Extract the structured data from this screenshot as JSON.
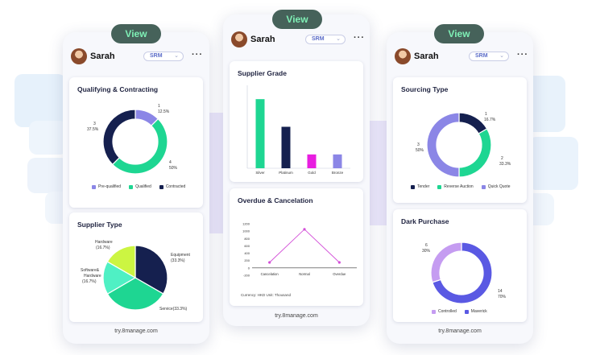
{
  "header": {
    "user_name": "Sarah",
    "module": "SRM",
    "view_label": "View"
  },
  "footer": "try.8manage.com",
  "colors": {
    "navy": "#15204f",
    "green": "#1ed692",
    "purple": "#8b86e6",
    "lavender": "#c59cf1",
    "lime": "#ccf542",
    "teal": "#4ff0c4",
    "magenta": "#e81ee0",
    "blue": "#5a59e3"
  },
  "cards": {
    "qualifying": {
      "title": "Qualifying & Contracting",
      "slices": [
        {
          "name": "Pre-qualified",
          "value": 1,
          "label": "1",
          "pct": "12.5%",
          "color": "#8b86e6"
        },
        {
          "name": "Qualified",
          "value": 4,
          "label": "4",
          "pct": "50%",
          "color": "#1ed692"
        },
        {
          "name": "Contracted",
          "value": 3,
          "label": "3",
          "pct": "37.5%",
          "color": "#15204f"
        }
      ]
    },
    "supplier_type": {
      "title": "Supplier Type",
      "slices": [
        {
          "name": "Equipment",
          "label": "Equipment",
          "pct": "(33.3%)",
          "value": 33.3,
          "color": "#15204f"
        },
        {
          "name": "Service",
          "label": "Service(33.3%)",
          "pct": "",
          "value": 33.3,
          "color": "#1ed692"
        },
        {
          "name": "Software& Hardware",
          "label": "Software&",
          "label2": "Hardware",
          "pct": "(16.7%)",
          "value": 16.7,
          "color": "#4ff0c4"
        },
        {
          "name": "Hardware",
          "label": "Hardware",
          "pct": "(16.7%)",
          "value": 16.7,
          "color": "#ccf542"
        }
      ]
    },
    "supplier_grade": {
      "title": "Supplier Grade",
      "categories": [
        "Silver",
        "Platinum",
        "Gold",
        "Bronze"
      ],
      "values": [
        5,
        3,
        1,
        1
      ],
      "colors": [
        "#1ed692",
        "#15204f",
        "#e81ee0",
        "#8b86e6"
      ],
      "ylim": [
        0,
        6
      ]
    },
    "overdue": {
      "title": "Overdue & Cancelation",
      "categories": [
        "Cancelation",
        "Normal",
        "Overdue"
      ],
      "values": [
        150,
        1050,
        150
      ],
      "yticks": [
        "1200",
        "1000",
        "800",
        "600",
        "400",
        "200",
        "0",
        "-200"
      ],
      "ylim": [
        -200,
        1200
      ],
      "currency": "Currency: HKD Unit: Thousand"
    },
    "sourcing_type": {
      "title": "Sourcing Type",
      "slices": [
        {
          "name": "Tender",
          "value": 1,
          "label": "1",
          "pct": "16.7%",
          "color": "#15204f"
        },
        {
          "name": "Reverse Auction",
          "value": 2,
          "label": "2",
          "pct": "33.3%",
          "color": "#1ed692"
        },
        {
          "name": "Quick Quote",
          "value": 3,
          "label": "3",
          "pct": "50%",
          "color": "#8b86e6"
        }
      ]
    },
    "dark_purchase": {
      "title": "Dark Purchase",
      "slices": [
        {
          "name": "Maverick",
          "value": 14,
          "label": "14",
          "pct": "70%",
          "color": "#5a59e3"
        },
        {
          "name": "Controlled",
          "value": 6,
          "label": "6",
          "pct": "30%",
          "color": "#c59cf1"
        }
      ]
    }
  }
}
